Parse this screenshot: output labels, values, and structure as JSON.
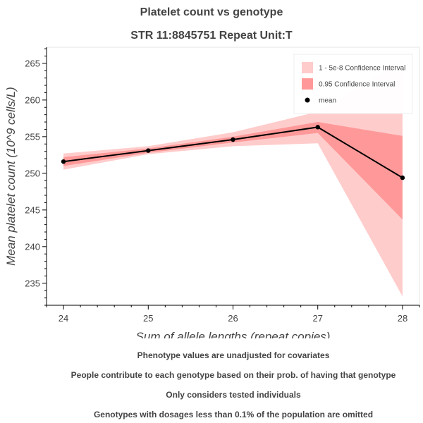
{
  "title": {
    "line1": "Platelet count vs genotype",
    "line2": "STR 11:8845751 Repeat Unit:T"
  },
  "notes": [
    "Phenotype values are unadjusted for covariates",
    "People contribute to each genotype based on their prob. of having that genotype",
    "Only considers tested individuals",
    "Genotypes with dosages less than 0.1% of the population are omitted"
  ],
  "chart_data": {
    "type": "line",
    "xlabel": "Sum of allele lengths (repeat copies)",
    "ylabel": "Mean platelet count (10^9 cells/L)",
    "x": [
      24,
      25,
      26,
      27,
      28
    ],
    "xticks": [
      24,
      25,
      26,
      27,
      28
    ],
    "yticks": [
      235,
      240,
      245,
      250,
      255,
      260,
      265
    ],
    "xlim": [
      23.8,
      28.2
    ],
    "ylim": [
      232.0,
      267.2
    ],
    "series": [
      {
        "name": "mean",
        "type": "line-with-markers",
        "color": "#000000",
        "values": [
          251.6,
          253.1,
          254.6,
          256.3,
          249.4
        ]
      },
      {
        "name": "0.95 Confidence Interval",
        "type": "band",
        "color": "#ff9999",
        "lower": [
          251.0,
          252.8,
          254.2,
          255.5,
          243.7
        ],
        "upper": [
          252.2,
          253.4,
          255.0,
          257.0,
          255.1
        ]
      },
      {
        "name": "1 - 5e-8 Confidence Interval",
        "type": "band",
        "color": "#ffcccc",
        "lower": [
          250.5,
          252.6,
          253.7,
          254.1,
          233.2
        ],
        "upper": [
          252.7,
          253.7,
          255.6,
          258.4,
          265.4
        ]
      }
    ],
    "legend": {
      "position": "top-right",
      "entries": [
        {
          "label": "1 - 5e-8 Confidence Interval",
          "color": "#ffcccc",
          "kind": "box"
        },
        {
          "label": "0.95 Confidence Interval",
          "color": "#ff9999",
          "kind": "box"
        },
        {
          "label": "mean",
          "color": "#000000",
          "kind": "dot"
        }
      ]
    }
  }
}
